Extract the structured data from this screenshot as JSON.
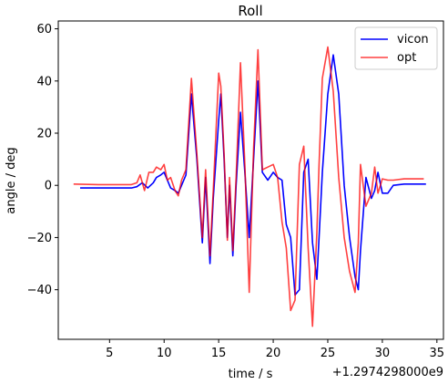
{
  "chart_data": {
    "type": "line",
    "title": "Roll",
    "xlabel": "time / s",
    "ylabel": "angle / deg",
    "x_offset_label": "+1.2974298000e9",
    "xlim": [
      0.3,
      35.6
    ],
    "ylim": [
      -59,
      63
    ],
    "xticks": [
      5,
      10,
      15,
      20,
      25,
      30,
      35
    ],
    "yticks": [
      -40,
      -20,
      0,
      20,
      40,
      60
    ],
    "xtick_labels": [
      "5",
      "10",
      "15",
      "20",
      "25",
      "30",
      "35"
    ],
    "ytick_labels": [
      "−40",
      "−20",
      "0",
      "20",
      "40",
      "60"
    ],
    "grid": false,
    "legend_position": "top-right",
    "series": [
      {
        "name": "vicon",
        "color": "#0000ff",
        "x": [
          2.3,
          4,
          6,
          7,
          7.5,
          8,
          8.5,
          9,
          9.3,
          9.7,
          10,
          10.3,
          10.6,
          11,
          11.3,
          11.6,
          12,
          12.5,
          13,
          13.5,
          13.8,
          14.2,
          14.5,
          15,
          15.2,
          15.5,
          15.8,
          16,
          16.3,
          16.6,
          17,
          17.4,
          17.8,
          18.2,
          18.6,
          19,
          19.5,
          20,
          20.4,
          20.8,
          21.2,
          21.6,
          22,
          22.4,
          22.8,
          23.2,
          23.6,
          24,
          24.2,
          24.5,
          25,
          25.5,
          26,
          26.5,
          27,
          27.5,
          27.8,
          28,
          28.5,
          29,
          29.3,
          29.6,
          30,
          30.5,
          31,
          32,
          34
        ],
        "y": [
          -1,
          -1,
          -1,
          -1,
          -0.5,
          1,
          -1,
          1,
          3,
          4,
          5,
          2,
          -1,
          -2,
          -3,
          0,
          4,
          35,
          10,
          -22,
          3,
          -30,
          -5,
          25,
          35,
          10,
          -20,
          0,
          -27,
          0,
          28,
          5,
          -20,
          10,
          40,
          5,
          2,
          5,
          3,
          2,
          -15,
          -20,
          -42,
          -40,
          5,
          10,
          -22,
          -36,
          -20,
          5,
          35,
          50,
          35,
          0,
          -20,
          -35,
          -40,
          -25,
          3,
          -5,
          -2,
          5,
          -3,
          -3,
          0,
          0.5,
          0.5
        ]
      },
      {
        "name": "opt",
        "color": "#ff0000",
        "x": [
          1.7,
          4,
          6,
          7,
          7.5,
          7.8,
          8.2,
          8.6,
          9,
          9.3,
          9.7,
          10,
          10.3,
          10.6,
          11,
          11.3,
          11.6,
          12,
          12.5,
          13,
          13.5,
          13.8,
          14.2,
          14.5,
          15,
          15.2,
          15.5,
          15.8,
          16,
          16.3,
          16.6,
          17,
          17.4,
          17.8,
          18.2,
          18.6,
          19,
          19.5,
          20,
          20.4,
          20.8,
          21.2,
          21.6,
          22,
          22.4,
          22.8,
          23.2,
          23.6,
          24,
          24.2,
          24.5,
          25,
          25.5,
          26,
          26.5,
          27,
          27.5,
          27.8,
          28,
          28.5,
          29,
          29.3,
          29.6,
          30,
          30.5,
          31,
          32,
          33.8
        ],
        "y": [
          0.5,
          0.3,
          0.3,
          0.3,
          1,
          4,
          -2,
          5,
          5,
          7,
          6,
          8,
          2,
          3,
          -2,
          -4,
          2,
          6,
          41,
          12,
          -20,
          6,
          -27,
          -2,
          43,
          38,
          12,
          -21,
          3,
          -25,
          3,
          47,
          8,
          -41,
          14,
          52,
          6,
          7,
          8,
          3,
          -14,
          -24,
          -48,
          -44,
          8,
          15,
          -24,
          -54,
          -18,
          8,
          41,
          53,
          36,
          3,
          -20,
          -33,
          -41,
          -22,
          8,
          -8,
          -3,
          7,
          -3,
          2.5,
          2,
          2,
          2.5,
          2.5
        ]
      }
    ]
  }
}
